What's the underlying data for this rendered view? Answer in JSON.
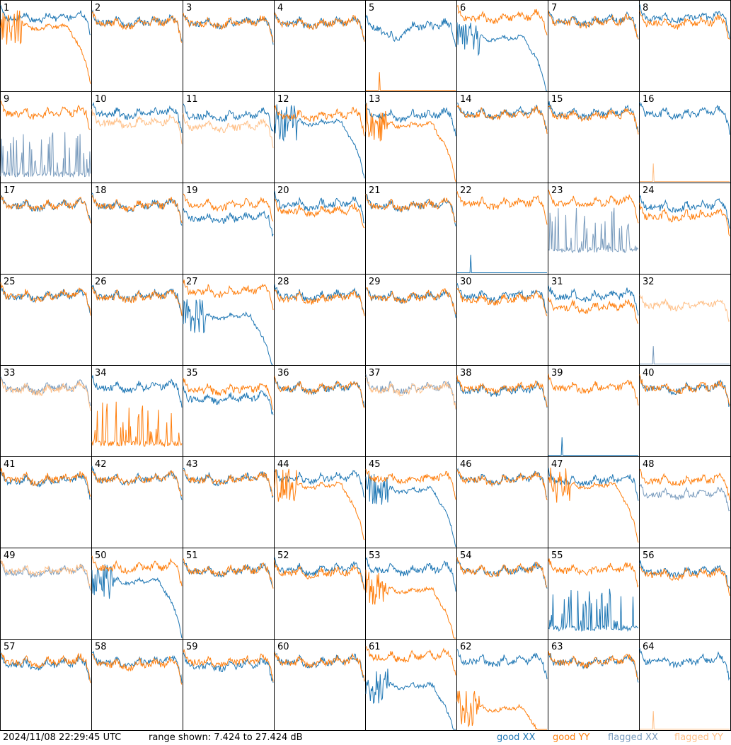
{
  "chart_data": {
    "type": "line",
    "layout": "small-multiples-8x8",
    "timestamp": "2024/11/08 22:29:45 UTC",
    "range_text": "range shown: 7.424 to 27.424 dB",
    "ylim": [
      7.424,
      27.424
    ],
    "legend": [
      {
        "key": "good_xx",
        "label": "good XX",
        "color": "#1f77b4"
      },
      {
        "key": "good_yy",
        "label": "good YY",
        "color": "#ff7f0e"
      },
      {
        "key": "flagged_xx",
        "label": "flagged XX",
        "color": "#7a9cbe"
      },
      {
        "key": "flagged_yy",
        "label": "flagged YY",
        "color": "#ffbf86"
      }
    ],
    "panels": [
      {
        "label": "1",
        "xx": "good",
        "yy": "good",
        "xx_level": 23.5,
        "yy_level": 21.5,
        "yy_shape": "decay",
        "xx_shape": "normal"
      },
      {
        "label": "2",
        "xx": "good",
        "yy": "good",
        "xx_level": 22.5,
        "yy_level": 22.3
      },
      {
        "label": "3",
        "xx": "good",
        "yy": "good",
        "xx_level": 22.3,
        "yy_level": 22.3
      },
      {
        "label": "4",
        "xx": "good",
        "yy": "good",
        "xx_level": 22.3,
        "yy_level": 22.3
      },
      {
        "label": "5",
        "xx": "good",
        "yy": "good",
        "xx_level": 21.5,
        "yy_level": 7.5,
        "yy_shape": "flat-low",
        "xx_shape": "dip"
      },
      {
        "label": "6",
        "xx": "good",
        "yy": "good",
        "xx_level": 19.0,
        "yy_level": 23.5,
        "xx_shape": "decay"
      },
      {
        "label": "7",
        "xx": "good",
        "yy": "good",
        "xx_level": 22.8,
        "yy_level": 22.5
      },
      {
        "label": "8",
        "xx": "good",
        "yy": "good",
        "xx_level": 23.5,
        "yy_level": 22.3
      },
      {
        "label": "9",
        "xx": "flagged",
        "yy": "good",
        "xx_level": 8.5,
        "yy_level": 22.5,
        "xx_shape": "spikes"
      },
      {
        "label": "10",
        "xx": "good",
        "yy": "flagged",
        "xx_level": 22.5,
        "yy_level": 20.5
      },
      {
        "label": "11",
        "xx": "good",
        "yy": "flagged",
        "xx_level": 22.0,
        "yy_level": 19.5
      },
      {
        "label": "12",
        "xx": "good",
        "yy": "good",
        "xx_level": 20.5,
        "yy_level": 22.0,
        "xx_shape": "decay"
      },
      {
        "label": "13",
        "xx": "good",
        "yy": "good",
        "xx_level": 22.0,
        "yy_level": 20.0,
        "yy_shape": "decay"
      },
      {
        "label": "14",
        "xx": "good",
        "yy": "good",
        "xx_level": 22.5,
        "yy_level": 22.3
      },
      {
        "label": "15",
        "xx": "good",
        "yy": "good",
        "xx_level": 22.5,
        "yy_level": 22.0
      },
      {
        "label": "16",
        "xx": "good",
        "yy": "flagged",
        "xx_level": 22.5,
        "yy_level": 7.5,
        "yy_shape": "flat-low"
      },
      {
        "label": "17",
        "xx": "good",
        "yy": "good",
        "xx_level": 22.3,
        "yy_level": 22.3
      },
      {
        "label": "18",
        "xx": "good",
        "yy": "good",
        "xx_level": 22.3,
        "yy_level": 22.3
      },
      {
        "label": "19",
        "xx": "good",
        "yy": "good",
        "xx_level": 19.5,
        "yy_level": 22.5
      },
      {
        "label": "20",
        "xx": "good",
        "yy": "good",
        "xx_level": 22.5,
        "yy_level": 21.0
      },
      {
        "label": "21",
        "xx": "good",
        "yy": "good",
        "xx_level": 22.3,
        "yy_level": 22.3
      },
      {
        "label": "22",
        "xx": "good",
        "yy": "good",
        "xx_level": 7.5,
        "yy_level": 22.8,
        "xx_shape": "flat-low"
      },
      {
        "label": "23",
        "xx": "flagged",
        "yy": "good",
        "xx_level": 12.0,
        "yy_level": 23.0,
        "xx_shape": "spikes"
      },
      {
        "label": "24",
        "xx": "good",
        "yy": "good",
        "xx_level": 22.0,
        "yy_level": 20.0
      },
      {
        "label": "25",
        "xx": "good",
        "yy": "good",
        "xx_level": 22.5,
        "yy_level": 22.5
      },
      {
        "label": "26",
        "xx": "good",
        "yy": "good",
        "xx_level": 22.5,
        "yy_level": 22.3
      },
      {
        "label": "27",
        "xx": "good",
        "yy": "good",
        "xx_level": 18.0,
        "yy_level": 23.5,
        "xx_shape": "decay"
      },
      {
        "label": "28",
        "xx": "good",
        "yy": "good",
        "xx_level": 22.5,
        "yy_level": 22.0
      },
      {
        "label": "29",
        "xx": "good",
        "yy": "good",
        "xx_level": 22.3,
        "yy_level": 22.3
      },
      {
        "label": "30",
        "xx": "good",
        "yy": "good",
        "xx_level": 22.5,
        "yy_level": 21.8
      },
      {
        "label": "31",
        "xx": "good",
        "yy": "good",
        "xx_level": 22.5,
        "yy_level": 20.0
      },
      {
        "label": "32",
        "xx": "flagged",
        "yy": "flagged",
        "xx_level": 7.5,
        "yy_level": 20.5,
        "xx_shape": "flat-low"
      },
      {
        "label": "33",
        "xx": "flagged",
        "yy": "flagged",
        "xx_level": 22.3,
        "yy_level": 22.0
      },
      {
        "label": "34",
        "xx": "good",
        "yy": "good",
        "xx_level": 22.5,
        "yy_level": 9.5,
        "yy_shape": "spikes"
      },
      {
        "label": "35",
        "xx": "good",
        "yy": "good",
        "xx_level": 20.0,
        "yy_level": 22.0
      },
      {
        "label": "36",
        "xx": "good",
        "yy": "good",
        "xx_level": 22.3,
        "yy_level": 22.3
      },
      {
        "label": "37",
        "xx": "flagged",
        "yy": "flagged",
        "xx_level": 22.3,
        "yy_level": 22.0
      },
      {
        "label": "38",
        "xx": "good",
        "yy": "good",
        "xx_level": 21.8,
        "yy_level": 22.3
      },
      {
        "label": "39",
        "xx": "good",
        "yy": "good",
        "xx_level": 7.5,
        "yy_level": 22.5,
        "xx_shape": "flat-low"
      },
      {
        "label": "40",
        "xx": "good",
        "yy": "good",
        "xx_level": 22.3,
        "yy_level": 22.3
      },
      {
        "label": "41",
        "xx": "good",
        "yy": "good",
        "xx_level": 22.0,
        "yy_level": 22.3
      },
      {
        "label": "42",
        "xx": "good",
        "yy": "good",
        "xx_level": 22.3,
        "yy_level": 22.3
      },
      {
        "label": "43",
        "xx": "good",
        "yy": "good",
        "xx_level": 22.3,
        "yy_level": 22.3
      },
      {
        "label": "44",
        "xx": "good",
        "yy": "good",
        "xx_level": 22.5,
        "yy_level": 21.0,
        "yy_shape": "decay"
      },
      {
        "label": "45",
        "xx": "good",
        "yy": "good",
        "xx_level": 20.0,
        "yy_level": 22.5,
        "xx_shape": "decay"
      },
      {
        "label": "46",
        "xx": "good",
        "yy": "good",
        "xx_level": 22.3,
        "yy_level": 22.3
      },
      {
        "label": "47",
        "xx": "good",
        "yy": "good",
        "xx_level": 22.0,
        "yy_level": 21.0,
        "yy_shape": "decay"
      },
      {
        "label": "48",
        "xx": "flagged",
        "yy": "good",
        "xx_level": 19.0,
        "yy_level": 22.0
      },
      {
        "label": "49",
        "xx": "flagged",
        "yy": "flagged",
        "xx_level": 22.0,
        "yy_level": 22.3
      },
      {
        "label": "50",
        "xx": "good",
        "yy": "good",
        "xx_level": 20.0,
        "yy_level": 23.0,
        "xx_shape": "decay"
      },
      {
        "label": "51",
        "xx": "good",
        "yy": "good",
        "xx_level": 22.3,
        "yy_level": 22.3
      },
      {
        "label": "52",
        "xx": "good",
        "yy": "good",
        "xx_level": 22.5,
        "yy_level": 21.8
      },
      {
        "label": "53",
        "xx": "good",
        "yy": "good",
        "xx_level": 22.5,
        "yy_level": 18.0,
        "yy_shape": "decay"
      },
      {
        "label": "54",
        "xx": "good",
        "yy": "good",
        "xx_level": 22.3,
        "yy_level": 22.3
      },
      {
        "label": "55",
        "xx": "good",
        "yy": "good",
        "xx_level": 9.0,
        "yy_level": 22.5,
        "xx_shape": "spikes"
      },
      {
        "label": "56",
        "xx": "good",
        "yy": "good",
        "xx_level": 22.0,
        "yy_level": 21.5
      },
      {
        "label": "57",
        "xx": "good",
        "yy": "good",
        "xx_level": 21.8,
        "yy_level": 22.3
      },
      {
        "label": "58",
        "xx": "good",
        "yy": "good",
        "xx_level": 22.3,
        "yy_level": 21.8
      },
      {
        "label": "59",
        "xx": "good",
        "yy": "good",
        "xx_level": 21.5,
        "yy_level": 22.3
      },
      {
        "label": "60",
        "xx": "good",
        "yy": "good",
        "xx_level": 22.3,
        "yy_level": 22.3
      },
      {
        "label": "61",
        "xx": "good",
        "yy": "good",
        "xx_level": 17.0,
        "yy_level": 23.5,
        "xx_shape": "decay"
      },
      {
        "label": "62",
        "xx": "good",
        "yy": "good",
        "xx_level": 22.5,
        "yy_level": 12.0,
        "yy_shape": "decay"
      },
      {
        "label": "63",
        "xx": "good",
        "yy": "good",
        "xx_level": 22.3,
        "yy_level": 22.3
      },
      {
        "label": "64",
        "xx": "good",
        "yy": "flagged",
        "xx_level": 22.5,
        "yy_level": 7.5,
        "yy_shape": "flat-low"
      }
    ]
  }
}
